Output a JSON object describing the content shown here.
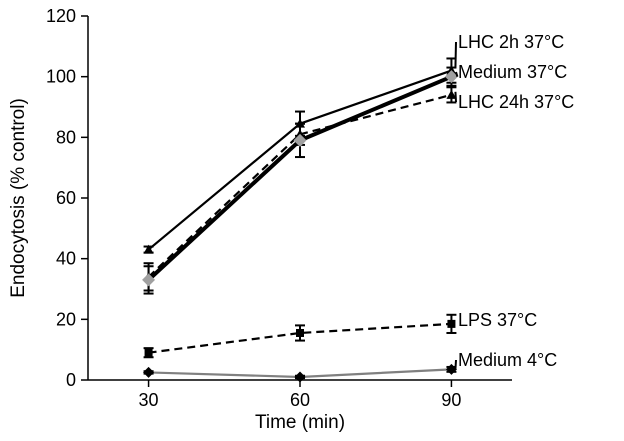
{
  "chart_data": {
    "type": "line",
    "title": "",
    "xlabel": "Time (min)",
    "ylabel": "Endocytosis (% control)",
    "x": [
      30,
      60,
      90
    ],
    "xlim": [
      18,
      102
    ],
    "ylim": [
      0,
      120
    ],
    "xticks": [
      "30",
      "60",
      "90"
    ],
    "yticks": [
      "0",
      "20",
      "40",
      "60",
      "80",
      "100",
      "120"
    ],
    "series": [
      {
        "name": "LHC 2h 37°C",
        "label": "LHC 2h 37°C",
        "values": [
          43,
          84.5,
          102
        ],
        "errors": [
          1,
          4,
          4
        ],
        "color": "#000000",
        "style": "solid",
        "width": 2.2,
        "marker": "triangle"
      },
      {
        "name": "Medium 37°C",
        "label": "Medium 37°C",
        "values": [
          33,
          79,
          100
        ],
        "errors": [
          4.5,
          5.5,
          3
        ],
        "color": "#000000",
        "style": "solid",
        "width": 4,
        "marker": "diamond-grey"
      },
      {
        "name": "LHC 24h 37°C",
        "label": "LHC 24h 37°C",
        "values": [
          34,
          81,
          94
        ],
        "errors": [
          4.5,
          3.5,
          2.5
        ],
        "color": "#000000",
        "style": "dashed",
        "width": 2.2,
        "marker": "triangle"
      },
      {
        "name": "LPS 37°C",
        "label": "LPS 37°C",
        "values": [
          9,
          15.5,
          18.5
        ],
        "errors": [
          1.5,
          2.5,
          3
        ],
        "color": "#000000",
        "style": "dashed",
        "width": 2.2,
        "marker": "square"
      },
      {
        "name": "Medium 4°C",
        "label": "Medium 4°C",
        "values": [
          2.5,
          1,
          3.5
        ],
        "errors": [
          0.4,
          0.4,
          0.8
        ],
        "color": "#808080",
        "style": "solid",
        "width": 2.2,
        "marker": "diamond"
      }
    ]
  }
}
